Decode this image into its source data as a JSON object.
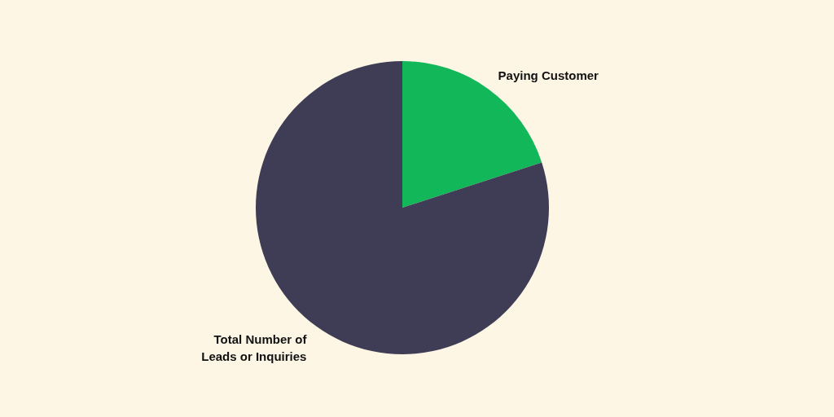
{
  "chart_data": {
    "type": "pie",
    "categories": [
      "Paying Customer",
      "Total Number of Leads or Inquiries"
    ],
    "values": [
      20,
      80
    ],
    "colors": [
      "#12b75a",
      "#3f3d56"
    ]
  }
}
